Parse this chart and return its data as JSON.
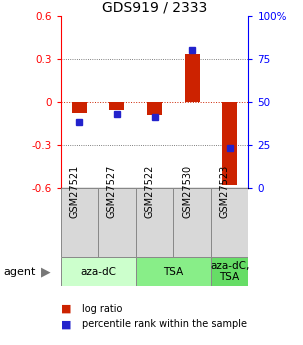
{
  "title": "GDS919 / 2333",
  "samples": [
    "GSM27521",
    "GSM27527",
    "GSM27522",
    "GSM27530",
    "GSM27523"
  ],
  "log_ratios": [
    -0.08,
    -0.06,
    -0.09,
    0.33,
    -0.58
  ],
  "percentile_ranks": [
    38,
    43,
    41,
    80,
    23
  ],
  "ylim_left": [
    -0.6,
    0.6
  ],
  "ylim_right": [
    0,
    100
  ],
  "yticks_left": [
    -0.6,
    -0.3,
    0,
    0.3,
    0.6
  ],
  "yticks_right": [
    0,
    25,
    50,
    75,
    100
  ],
  "bar_color": "#cc2200",
  "percentile_color": "#2222cc",
  "dotted_color": "#555555",
  "zero_line_color": "#cc2200",
  "sample_box_color": "#d8d8d8",
  "groups": [
    {
      "label": "aza-dC",
      "color": "#ccffcc",
      "start": 0,
      "end": 2
    },
    {
      "label": "TSA",
      "color": "#88ee88",
      "start": 2,
      "end": 4
    },
    {
      "label": "aza-dC,\nTSA",
      "color": "#66dd66",
      "start": 4,
      "end": 5
    }
  ],
  "legend_items": [
    {
      "color": "#cc2200",
      "label": "log ratio"
    },
    {
      "color": "#2222cc",
      "label": "percentile rank within the sample"
    }
  ],
  "title_fontsize": 10,
  "tick_fontsize": 7.5,
  "sample_fontsize": 7,
  "group_fontsize": 7.5,
  "legend_fontsize": 7,
  "agent_fontsize": 8
}
